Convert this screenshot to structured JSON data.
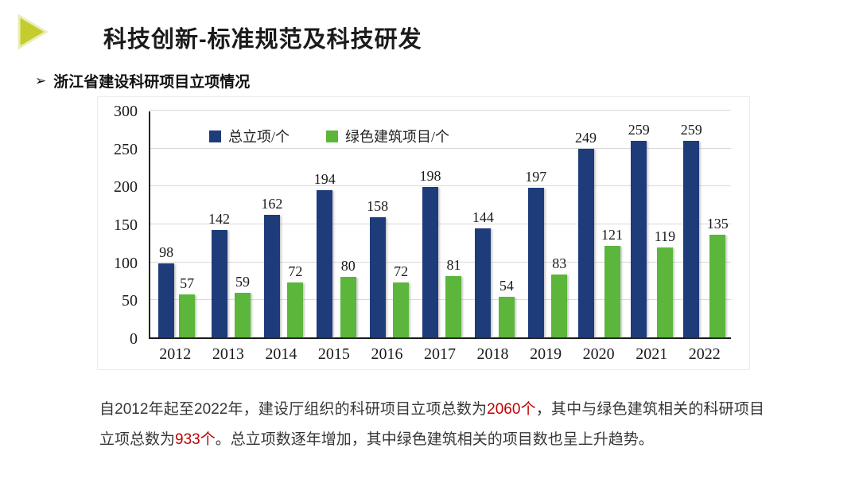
{
  "slide": {
    "title": "科技创新-标准规范及科技研发",
    "bullet_marker": "➢",
    "bullet": "浙江省建设科研项目立项情况",
    "accent_color": "#c3ce2e",
    "accent_border_color": "#e9edb9"
  },
  "chart_data": {
    "type": "bar",
    "categories": [
      "2012",
      "2013",
      "2014",
      "2015",
      "2016",
      "2017",
      "2018",
      "2019",
      "2020",
      "2021",
      "2022"
    ],
    "series": [
      {
        "name": "总立项/个",
        "color": "#1f3c7a",
        "values": [
          98,
          142,
          162,
          194,
          158,
          198,
          144,
          197,
          249,
          259,
          259
        ]
      },
      {
        "name": "绿色建筑项目/个",
        "color": "#5cb63c",
        "values": [
          57,
          59,
          72,
          80,
          72,
          81,
          54,
          83,
          121,
          119,
          135
        ]
      }
    ],
    "title": "",
    "xlabel": "",
    "ylabel": "",
    "ylim": [
      0,
      300
    ],
    "yticks": [
      0,
      50,
      100,
      150,
      200,
      250,
      300
    ],
    "grid": true,
    "legend_position": "top-inside",
    "gridline_color": "#d9d9d9",
    "axis_color": "#1a1a1a"
  },
  "footer": {
    "segments": [
      {
        "text": "自2012年起至2022年，建设厅组织的科研项目立项总数为",
        "color": "#363636"
      },
      {
        "text": "2060个",
        "color": "#c00000"
      },
      {
        "text": "，其中与绿色建筑相关的科研项目立项总数为",
        "color": "#363636"
      },
      {
        "text": "933个",
        "color": "#c00000"
      },
      {
        "text": "。总立项数逐年增加，其中绿色建筑相关的项目数也呈上升趋势。",
        "color": "#363636"
      }
    ]
  }
}
